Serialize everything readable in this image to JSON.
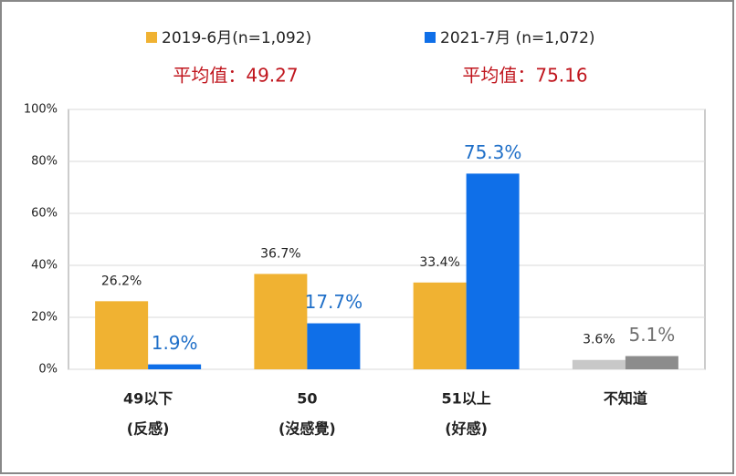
{
  "chart_data": {
    "type": "bar",
    "annotations": [
      "平均值：49.27",
      "平均值：75.16"
    ],
    "categories": [
      [
        "49以下",
        "(反感)"
      ],
      [
        "50",
        "(沒感覺)"
      ],
      [
        "51以上",
        "(好感)"
      ],
      [
        "不知道"
      ]
    ],
    "series": [
      {
        "name": "2019-6月(n=1,092)",
        "color": "#f0b232",
        "colors": [
          "#f0b232",
          "#f0b232",
          "#f0b232",
          "#c8c8c8"
        ],
        "label_colors": [
          "#222222",
          "#222222",
          "#222222",
          "#222222"
        ],
        "values": [
          26.2,
          36.7,
          33.4,
          3.6
        ],
        "value_labels": [
          "26.2%",
          "36.7%",
          "33.4%",
          "3.6%"
        ]
      },
      {
        "name": "2021-7月 (n=1,072)",
        "color": "#0f6fe8",
        "colors": [
          "#0f6fe8",
          "#0f6fe8",
          "#0f6fe8",
          "#8c8c8c"
        ],
        "label_colors": [
          "#1f6fc8",
          "#1f6fc8",
          "#1f6fc8",
          "#707070"
        ],
        "values": [
          1.9,
          17.7,
          75.3,
          5.1
        ],
        "value_labels": [
          "1.9%",
          "17.7%",
          "75.3%",
          "5.1%"
        ]
      }
    ],
    "ylim": [
      0,
      100
    ],
    "yticks": [
      {
        "value": 0,
        "label": "0%"
      },
      {
        "value": 20,
        "label": "20%"
      },
      {
        "value": 40,
        "label": "40%"
      },
      {
        "value": 60,
        "label": "60%"
      },
      {
        "value": 80,
        "label": "80%"
      },
      {
        "value": 100,
        "label": "100%"
      }
    ],
    "grid": true
  }
}
